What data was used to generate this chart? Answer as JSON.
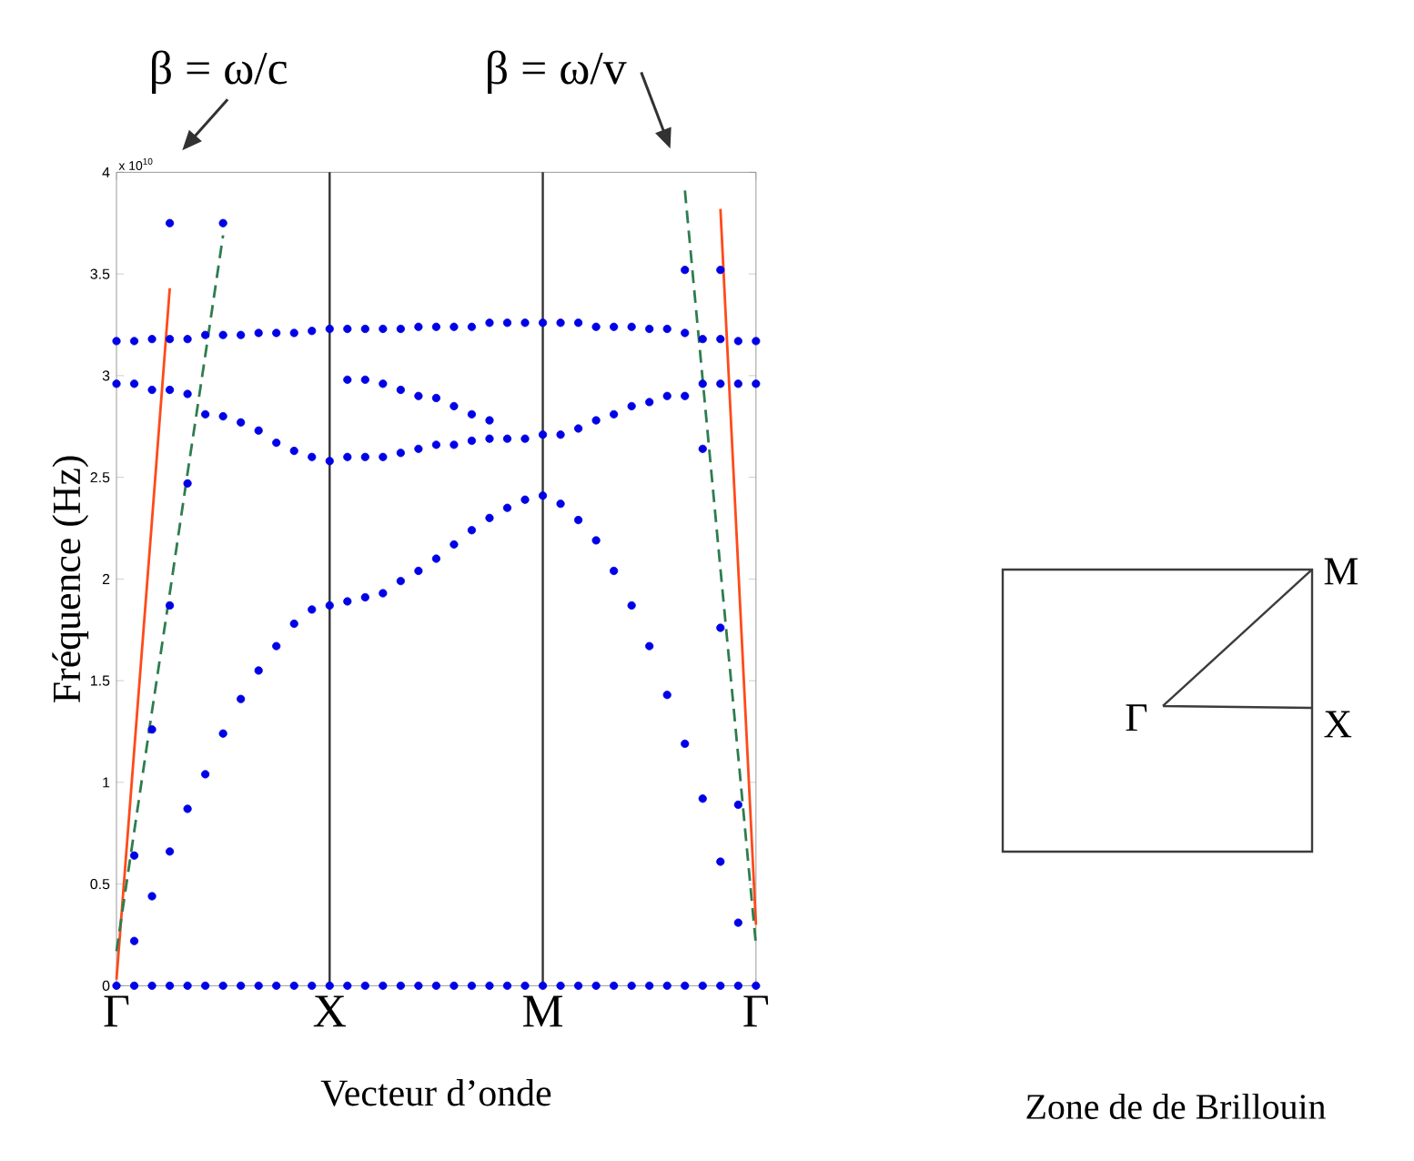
{
  "chart_data": [
    {
      "type": "scatter",
      "xlabel": "Vecteur d’onde",
      "ylabel": "Fréquence (Hz)",
      "categories": [
        "Γ",
        null,
        null,
        null,
        null,
        null,
        null,
        null,
        null,
        null,
        null,
        null,
        "X",
        null,
        null,
        null,
        null,
        null,
        null,
        null,
        null,
        null,
        null,
        null,
        "M",
        null,
        null,
        null,
        null,
        null,
        null,
        null,
        null,
        null,
        null,
        null,
        "Γ"
      ],
      "ylim": [
        0,
        4
      ],
      "yticks": [
        0,
        0.5,
        1,
        1.5,
        2,
        2.5,
        3,
        3.5,
        4
      ],
      "grid": false,
      "ref_lines": [
        {
          "axis": "x",
          "value": "X",
          "color": "#333333"
        },
        {
          "axis": "x",
          "value": "M",
          "color": "#333333"
        }
      ],
      "annotations": [
        "x 10$^{10}$",
        "β = ω/c",
        "β = ω/v"
      ],
      "series": [
        {
          "type": "line",
          "color": "#ff4a1a",
          "line_style": "solid",
          "values": [
            0.03,
            1.16,
            2.29,
            3.43,
            null,
            null,
            null,
            null,
            null,
            null,
            null,
            null,
            null,
            null,
            null,
            null,
            null,
            null,
            null,
            null,
            null,
            null,
            null,
            null,
            null,
            null,
            null,
            null,
            null,
            null,
            null,
            null,
            null,
            null,
            null,
            null,
            null
          ]
        },
        {
          "type": "line",
          "color": "#ff4a1a",
          "line_style": "solid",
          "values": [
            null,
            null,
            null,
            null,
            null,
            null,
            null,
            null,
            null,
            null,
            null,
            null,
            null,
            null,
            null,
            null,
            null,
            null,
            null,
            null,
            null,
            null,
            null,
            null,
            null,
            null,
            null,
            null,
            null,
            null,
            null,
            null,
            null,
            null,
            3.82,
            2.06,
            0.3
          ]
        },
        {
          "type": "line",
          "color": "#2e7d4f",
          "line_style": "dashed",
          "values": [
            0.17,
            0.76,
            1.35,
            1.93,
            2.52,
            3.1,
            3.69,
            null,
            null,
            null,
            null,
            null,
            null,
            null,
            null,
            null,
            null,
            null,
            null,
            null,
            null,
            null,
            null,
            null,
            null,
            null,
            null,
            null,
            null,
            null,
            null,
            null,
            null,
            null,
            null,
            null,
            null
          ]
        },
        {
          "type": "line",
          "color": "#2e7d4f",
          "line_style": "dashed",
          "values": [
            null,
            null,
            null,
            null,
            null,
            null,
            null,
            null,
            null,
            null,
            null,
            null,
            null,
            null,
            null,
            null,
            null,
            null,
            null,
            null,
            null,
            null,
            null,
            null,
            null,
            null,
            null,
            null,
            null,
            null,
            null,
            null,
            3.91,
            2.98,
            2.05,
            1.13,
            0.2
          ]
        },
        {
          "type": "scatter",
          "color": "#0000e6",
          "marker": "circle",
          "values": [
            0,
            0,
            0,
            0,
            0,
            0,
            0,
            0,
            0,
            0,
            0,
            0,
            0,
            0,
            0,
            0,
            0,
            0,
            0,
            0,
            0,
            0,
            0,
            0,
            0,
            0,
            0,
            0,
            0,
            0,
            0,
            0,
            0,
            0,
            0,
            0,
            0
          ]
        },
        {
          "type": "scatter",
          "color": "#0000e6",
          "marker": "circle",
          "values": [
            3.17,
            3.17,
            3.18,
            3.18,
            3.18,
            3.2,
            3.2,
            3.2,
            3.21,
            3.21,
            3.21,
            3.22,
            3.23,
            3.23,
            3.23,
            3.23,
            3.23,
            3.24,
            3.24,
            3.24,
            3.24,
            3.26,
            3.26,
            3.26,
            3.26,
            3.26,
            3.26,
            3.24,
            3.24,
            3.24,
            3.23,
            3.23,
            3.21,
            3.18,
            3.18,
            3.17,
            3.17
          ]
        },
        {
          "type": "scatter",
          "color": "#0000e6",
          "marker": "circle",
          "values": [
            2.96,
            2.96,
            2.93,
            2.93,
            2.91,
            2.81,
            2.8,
            2.77,
            2.73,
            2.67,
            2.63,
            2.6,
            2.58,
            2.6,
            2.6,
            2.6,
            2.62,
            2.64,
            2.66,
            2.66,
            2.68,
            2.69,
            2.69,
            2.69,
            2.71,
            2.71,
            2.74,
            2.78,
            2.81,
            2.85,
            2.87,
            2.9,
            2.9,
            2.96,
            2.96,
            2.96,
            2.96
          ]
        },
        {
          "type": "scatter",
          "color": "#0000e6",
          "marker": "circle",
          "values": [
            null,
            null,
            null,
            null,
            null,
            null,
            null,
            null,
            null,
            null,
            null,
            null,
            null,
            2.98,
            2.98,
            2.96,
            2.93,
            2.9,
            2.89,
            2.85,
            2.81,
            2.78,
            null,
            null,
            null,
            null,
            null,
            null,
            null,
            null,
            null,
            null,
            null,
            null,
            null,
            null,
            null
          ]
        },
        {
          "type": "scatter",
          "color": "#0000e6",
          "marker": "circle",
          "values": [
            null,
            0.22,
            0.44,
            0.66,
            0.87,
            1.04,
            1.24,
            1.41,
            1.55,
            1.67,
            1.78,
            1.85,
            1.87,
            1.89,
            1.91,
            1.93,
            1.99,
            2.04,
            2.1,
            2.17,
            2.24,
            2.3,
            2.35,
            2.39,
            2.41,
            2.37,
            2.29,
            2.19,
            2.04,
            1.87,
            1.67,
            1.43,
            1.19,
            0.92,
            0.61,
            0.31,
            null
          ]
        },
        {
          "type": "scatter",
          "color": "#0000e6",
          "marker": "circle",
          "values": [
            null,
            0.64,
            1.26,
            1.87,
            2.47,
            null,
            null,
            null,
            null,
            null,
            null,
            null,
            null,
            null,
            null,
            null,
            null,
            null,
            null,
            null,
            null,
            null,
            null,
            null,
            null,
            null,
            null,
            null,
            null,
            null,
            null,
            null,
            3.52,
            2.64,
            1.76,
            0.89,
            null
          ]
        },
        {
          "type": "scatter",
          "color": "#0000e6",
          "marker": "circle",
          "values": [
            null,
            null,
            null,
            3.75,
            null,
            null,
            3.75,
            null,
            null,
            null,
            null,
            null,
            null,
            null,
            null,
            null,
            null,
            null,
            null,
            null,
            null,
            null,
            null,
            null,
            null,
            null,
            null,
            null,
            null,
            null,
            null,
            null,
            null,
            null,
            3.52,
            null,
            null
          ]
        }
      ]
    },
    {
      "type": "other",
      "title": "Zone de de Brillouin",
      "annotations": [
        "Γ",
        "M",
        "X"
      ]
    }
  ]
}
